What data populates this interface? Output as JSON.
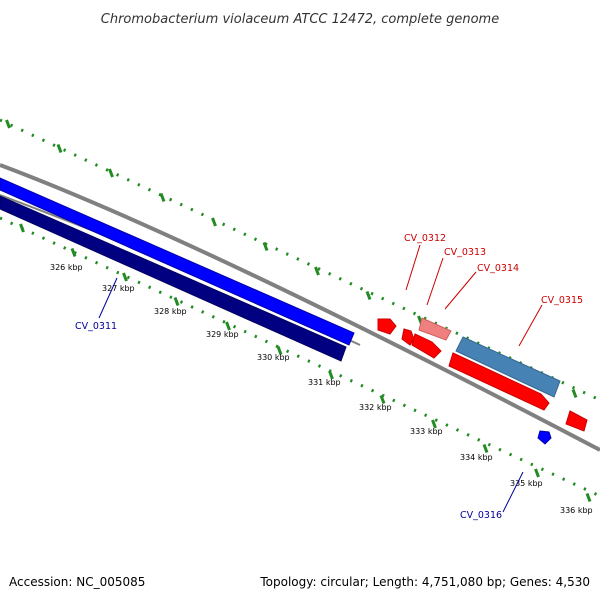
{
  "title": "Chromobacterium violaceum ATCC 12472, complete genome",
  "footer": {
    "accession": "Accession: NC_005085",
    "summary": "Topology: circular; Length: 4,751,080 bp; Genes: 4,530"
  },
  "ticks": [
    "326 kbp",
    "327 kbp",
    "328 kbp",
    "329 kbp",
    "330 kbp",
    "331 kbp",
    "332 kbp",
    "333 kbp",
    "334 kbp",
    "335 kbp",
    "336 kbp"
  ],
  "genes": [
    {
      "id": "CV_0311",
      "strand": "minus"
    },
    {
      "id": "CV_0312",
      "strand": "plus"
    },
    {
      "id": "CV_0313",
      "strand": "plus"
    },
    {
      "id": "CV_0314",
      "strand": "plus"
    },
    {
      "id": "CV_0315",
      "strand": "plus"
    },
    {
      "id": "CV_0316",
      "strand": "minus"
    }
  ],
  "colors": {
    "forward_gene": "#ff0000",
    "forward_gene_light": "#f08080",
    "reverse_gene": "#0000ff",
    "reverse_gene_dark": "#000080",
    "other_gene": "#4682b4",
    "backbone": "#808080",
    "tick": "#228b22",
    "forward_label": "#cc0000",
    "reverse_label": "#000099"
  }
}
